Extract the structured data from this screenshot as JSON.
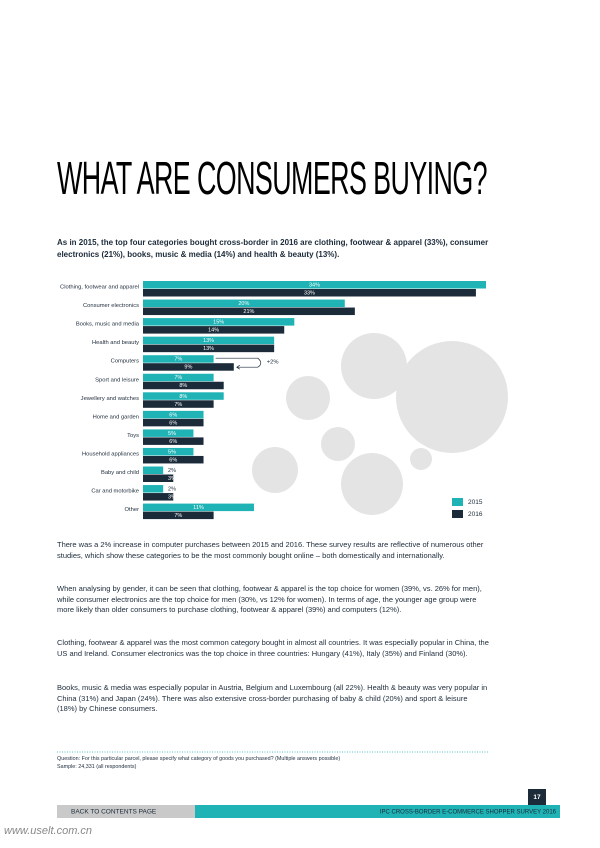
{
  "header": {
    "title": "WHAT ARE CONSUMERS BUYING?",
    "subtitle": "As in 2015, the top four categories bought cross-border in 2016 are clothing, footwear & apparel (33%), consumer electronics (21%), books, music & media (14%) and health & beauty (13%)."
  },
  "chart_data": {
    "type": "hbar",
    "categories": [
      "Clothing, footwear and apparel",
      "Consumer electronics",
      "Books, music and media",
      "Health and beauty",
      "Computers",
      "Sport and leisure",
      "Jewellery and watches",
      "Home and garden",
      "Toys",
      "Household appliances",
      "Baby and child",
      "Car and motorbike",
      "Other"
    ],
    "series": [
      {
        "name": "2015",
        "color": "#1fb3b5",
        "values": [
          34,
          20,
          15,
          13,
          7,
          7,
          8,
          6,
          5,
          5,
          2,
          2,
          11
        ],
        "value_labels": [
          "34%",
          "20%",
          "15%",
          "13%",
          "7%",
          "7%",
          "8%",
          "6%",
          "5%",
          "5%",
          "2%",
          "2%",
          "11%"
        ]
      },
      {
        "name": "2016",
        "color": "#1c2b3a",
        "values": [
          33,
          21,
          14,
          13,
          9,
          8,
          7,
          6,
          6,
          6,
          3,
          3,
          7
        ],
        "value_labels": [
          "33%",
          "21%",
          "14%",
          "13%",
          "9%",
          "8%",
          "7%",
          "6%",
          "6%",
          "6%",
          "3%",
          "3%",
          "7%"
        ]
      }
    ],
    "annotation": "+2%",
    "legend": "bottom-right"
  },
  "body": {
    "paragraphs": [
      "There was a 2% increase in computer purchases between 2015 and 2016. These survey results are reflective of numerous other studies, which show these categories to be the most commonly bought online – both domestically and internationally.",
      "When analysing by gender, it can be seen that clothing, footwear & apparel is the top choice for women (39%, vs. 26% for men), while consumer electronics are the top choice for men (30%, vs 12% for women). In terms of age, the younger age group were more likely than older consumers to purchase clothing, footwear & apparel (39%) and computers (12%).",
      "Clothing, footwear & apparel was the most common category bought in almost all countries. It was especially popular in China, the US and Ireland. Consumer electronics was the top choice in three countries: Hungary (41%), Italy (35%) and Finland (30%).",
      "Books, music & media was especially popular in Austria, Belgium and Luxembourg (all 22%). Health & beauty was very popular in China (31%) and Japan (24%). There was also extensive cross-border purchasing of baby & child (20%) and sport & leisure (18%) by Chinese consumers."
    ]
  },
  "footnote": {
    "question": "Question: For this particular parcel, please specify what category of goods you purchased? (Multiple answers possible)",
    "sample": "Sample: 24,331 (all respondents)"
  },
  "footer": {
    "back_link": "BACK TO CONTENTS PAGE",
    "survey": "IPC CROSS-BORDER E-COMMERCE SHOPPER SURVEY 2016",
    "page_number": "17",
    "watermark": "www.uselt.com.cn"
  }
}
